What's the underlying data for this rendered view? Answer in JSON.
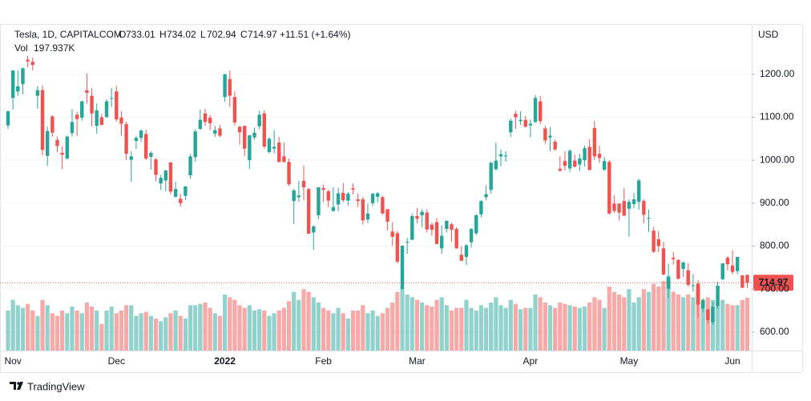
{
  "chart_data": {
    "type": "candlestick",
    "currency": "USD",
    "legend": {
      "symbol": "Tesla, 1D, CAPITALCOM",
      "open_label": "O",
      "high_label": "H",
      "low_label": "L",
      "close_label": "C",
      "change": "+11.51 (+1.64%)",
      "volume_label": "Vol",
      "volume_value": "197.937K"
    },
    "categories": [
      null,
      "Nov",
      null,
      null,
      null,
      null,
      null,
      null,
      null,
      null,
      null,
      null,
      null,
      null,
      null,
      null,
      null,
      null,
      null,
      null,
      null,
      null,
      "Dec",
      null,
      null,
      null,
      null,
      null,
      null,
      null,
      null,
      null,
      null,
      null,
      null,
      null,
      null,
      null,
      null,
      null,
      null,
      null,
      null,
      null,
      "2022",
      null,
      null,
      null,
      null,
      null,
      null,
      null,
      null,
      null,
      null,
      null,
      null,
      null,
      null,
      null,
      null,
      null,
      null,
      null,
      "Feb",
      null,
      null,
      null,
      null,
      null,
      null,
      null,
      null,
      null,
      null,
      null,
      null,
      null,
      null,
      null,
      null,
      null,
      null,
      "Mar",
      null,
      null,
      null,
      null,
      null,
      null,
      null,
      null,
      null,
      null,
      null,
      null,
      null,
      null,
      null,
      null,
      null,
      null,
      null,
      null,
      null,
      null,
      "Apr",
      null,
      null,
      null,
      null,
      null,
      null,
      null,
      null,
      null,
      null,
      null,
      null,
      null,
      null,
      null,
      null,
      null,
      null,
      null,
      "May",
      null,
      null,
      null,
      null,
      null,
      null,
      null,
      null,
      null,
      null,
      null,
      null,
      null,
      null,
      null,
      null,
      null,
      null,
      null,
      null,
      "Jun",
      null,
      null,
      null
    ],
    "open": [
      1081,
      1145,
      1160,
      1177,
      1234,
      1229,
      1150,
      1163,
      1010,
      1102,
      1047,
      1017,
      1004,
      1063,
      1106,
      1099,
      1163,
      1150,
      1080,
      1100,
      1100,
      1144,
      1160,
      1099,
      1084,
      1001,
      1045,
      1052,
      1061,
      1008,
      1002,
      946,
      953,
      995,
      915,
      910,
      917,
      965,
      1007,
      1073,
      1109,
      1099,
      1062,
      1074,
      1147,
      1189,
      1147,
      1078,
      1080,
      1000,
      1053,
      1079,
      1109,
      1019,
      1027,
      1041,
      1009,
      996,
      905,
      914,
      952,
      933,
      832,
      872,
      935,
      928,
      882,
      897,
      924,
      906,
      935,
      909,
      909,
      862,
      900,
      915,
      914,
      886,
      834,
      830,
      700,
      809,
      815,
      870,
      872,
      878,
      850,
      856,
      795,
      840,
      851,
      840,
      780,
      775,
      809,
      830,
      874,
      914,
      931,
      979,
      1009,
      1009,
      1065,
      1108,
      1091,
      1094,
      1081,
      1089,
      1137,
      1074,
      1053,
      1043,
      980,
      998,
      981,
      999,
      990,
      1000,
      1031,
      1075,
      1015,
      978,
      996,
      899,
      899,
      905,
      887,
      898,
      903,
      905,
      866,
      836,
      816,
      795,
      701,
      773,
      768,
      747,
      744,
      707,
      713,
      655,
      653,
      623,
      661,
      723,
      773,
      755,
      742,
      732,
      733.01
    ],
    "high": [
      1115,
      1209,
      1209,
      1216,
      1243,
      1239,
      1172,
      1174,
      1078,
      1105,
      1055,
      1032,
      1057,
      1119,
      1113,
      1139,
      1202,
      1167,
      1132,
      1108,
      1142,
      1168,
      1173,
      1114,
      1090,
      1021,
      1057,
      1072,
      1071,
      1021,
      1005,
      966,
      978,
      995,
      950,
      922,
      940,
      1015,
      1072,
      1118,
      1120,
      1105,
      1080,
      1082,
      1201,
      1209,
      1160,
      1080,
      1080,
      1059,
      1076,
      1115,
      1116,
      1053,
      1070,
      1054,
      1041,
      1004,
      933,
      952,
      988,
      935,
      849,
      937,
      943,
      931,
      937,
      936,
      947,
      926,
      946,
      923,
      915,
      899,
      924,
      926,
      917,
      886,
      856,
      835,
      802,
      819,
      876,
      889,
      886,
      886,
      855,
      866,
      849,
      860,
      855,
      844,
      800,
      805,
      842,
      875,
      907,
      942,
      997,
      1041,
      1025,
      1021,
      1097,
      1115,
      1114,
      1103,
      1095,
      1152,
      1150,
      1080,
      1077,
      1048,
      1009,
      1021,
      1026,
      1013,
      1015,
      1034,
      1049,
      1092,
      1034,
      1008,
      1000,
      918,
      900,
      935,
      909,
      924,
      957,
      909,
      885,
      845,
      835,
      810,
      759,
      787,
      770,
      764,
      760,
      735,
      721,
      679,
      654,
      670,
      718,
      760,
      777,
      790,
      775,
      733,
      734.02
    ],
    "low": [
      1073,
      1118,
      1150,
      1153,
      1217,
      1209,
      1120,
      1011,
      987,
      1055,
      1019,
      979,
      1002,
      1055,
      1056,
      1092,
      1132,
      1079,
      1062,
      1081,
      1100,
      1124,
      1090,
      1057,
      1000,
      950,
      1026,
      1043,
      1000,
      978,
      951,
      931,
      928,
      921,
      913,
      893,
      907,
      957,
      997,
      1070,
      1080,
      1070,
      1054,
      1054,
      1136,
      1124,
      1081,
      1036,
      1010,
      980,
      1048,
      1072,
      1027,
      1016,
      1016,
      995,
      994,
      940,
      851,
      903,
      907,
      829,
      792,
      863,
      903,
      890,
      880,
      881,
      902,
      894,
      920,
      891,
      850,
      854,
      893,
      902,
      874,
      837,
      801,
      760,
      700,
      782,
      814,
      853,
      844,
      832,
      825,
      804,
      782,
      832,
      810,
      794,
      766,
      756,
      797,
      825,
      867,
      907,
      922,
      976,
      986,
      997,
      1054,
      1073,
      1082,
      1076,
      1053,
      1087,
      1084,
      1038,
      1021,
      1022,
      973,
      976,
      973,
      983,
      975,
      985,
      977,
      1001,
      994,
      975,
      874,
      877,
      860,
      870,
      822,
      888,
      885,
      853,
      833,
      784,
      786,
      733,
      680,
      757,
      722,
      728,
      705,
      694,
      633,
      646,
      620,
      617,
      654,
      721,
      743,
      735,
      735,
      702,
      702.94
    ],
    "close": [
      1114,
      1209,
      1172,
      1214,
      1230,
      1222,
      1163,
      1024,
      1068,
      1064,
      1033,
      1013,
      1055,
      1089,
      1096,
      1137,
      1157,
      1109,
      1116,
      1082,
      1137,
      1145,
      1095,
      1085,
      1015,
      1009,
      1052,
      1069,
      1004,
      1017,
      966,
      959,
      976,
      927,
      933,
      900,
      939,
      1009,
      1067,
      1094,
      1089,
      1086,
      1070,
      1057,
      1200,
      1150,
      1088,
      1065,
      1027,
      1058,
      1064,
      1106,
      1032,
      1050,
      1031,
      996,
      996,
      944,
      930,
      918,
      937,
      829,
      846,
      937,
      931,
      906,
      891,
      923,
      907,
      922,
      932,
      905,
      860,
      876,
      922,
      923,
      876,
      857,
      822,
      764,
      801,
      810,
      870,
      864,
      880,
      839,
      838,
      805,
      824,
      859,
      838,
      795,
      766,
      802,
      840,
      872,
      905,
      921,
      994,
      999,
      1014,
      1011,
      1092,
      1100,
      1094,
      1078,
      1085,
      1145,
      1091,
      1046,
      1057,
      1025,
      976,
      987,
      1022,
      985,
      1004,
      1028,
      977,
      1009,
      1005,
      998,
      876,
      882,
      878,
      871,
      903,
      909,
      953,
      873,
      866,
      787,
      800,
      734,
      728,
      770,
      724,
      762,
      710,
      709,
      664,
      675,
      628,
      659,
      708,
      760,
      758,
      740,
      775,
      703.46,
      714.97
    ],
    "volume": [
      150000,
      190000,
      170000,
      160000,
      175000,
      150000,
      130000,
      190000,
      170000,
      140000,
      130000,
      150000,
      140000,
      165000,
      150000,
      140000,
      180000,
      165000,
      150000,
      100000,
      150000,
      165000,
      140000,
      150000,
      170000,
      170000,
      130000,
      140000,
      145000,
      130000,
      120000,
      110000,
      125000,
      140000,
      150000,
      130000,
      120000,
      170000,
      170000,
      175000,
      180000,
      160000,
      140000,
      130000,
      210000,
      200000,
      190000,
      170000,
      160000,
      170000,
      150000,
      155000,
      150000,
      130000,
      140000,
      150000,
      160000,
      185000,
      220000,
      190000,
      230000,
      220000,
      200000,
      180000,
      160000,
      150000,
      140000,
      160000,
      140000,
      120000,
      150000,
      150000,
      170000,
      140000,
      150000,
      130000,
      140000,
      160000,
      180000,
      220000,
      230000,
      210000,
      200000,
      190000,
      180000,
      170000,
      165000,
      190000,
      200000,
      170000,
      150000,
      160000,
      160000,
      190000,
      160000,
      150000,
      170000,
      160000,
      180000,
      200000,
      170000,
      160000,
      190000,
      175000,
      155000,
      160000,
      160000,
      210000,
      200000,
      180000,
      170000,
      160000,
      180000,
      175000,
      170000,
      165000,
      160000,
      165000,
      180000,
      200000,
      190000,
      160000,
      240000,
      220000,
      210000,
      200000,
      230000,
      180000,
      200000,
      230000,
      220000,
      250000,
      240000,
      260000,
      280000,
      220000,
      210000,
      200000,
      210000,
      200000,
      240000,
      190000,
      200000,
      190000,
      180000,
      190000,
      175000,
      170000,
      170000,
      190000,
      197937
    ],
    "ylim": [
      557,
      1317
    ],
    "yticks": [
      {
        "value": 600,
        "label": "600.00"
      },
      {
        "value": 700,
        "label": "700.00"
      },
      {
        "value": 800,
        "label": "800.00"
      },
      {
        "value": 900,
        "label": "900.00"
      },
      {
        "value": 1000,
        "label": "1000.00"
      },
      {
        "value": 1100,
        "label": "1100.00"
      },
      {
        "value": 1200,
        "label": "1200.00"
      }
    ],
    "y2lim": [
      0,
      1224000
    ],
    "colors": {
      "up": "#26a69a",
      "down": "#ef5350"
    },
    "grid": true,
    "last_price_line": true
  },
  "footer": {
    "brand": "TradingView"
  }
}
